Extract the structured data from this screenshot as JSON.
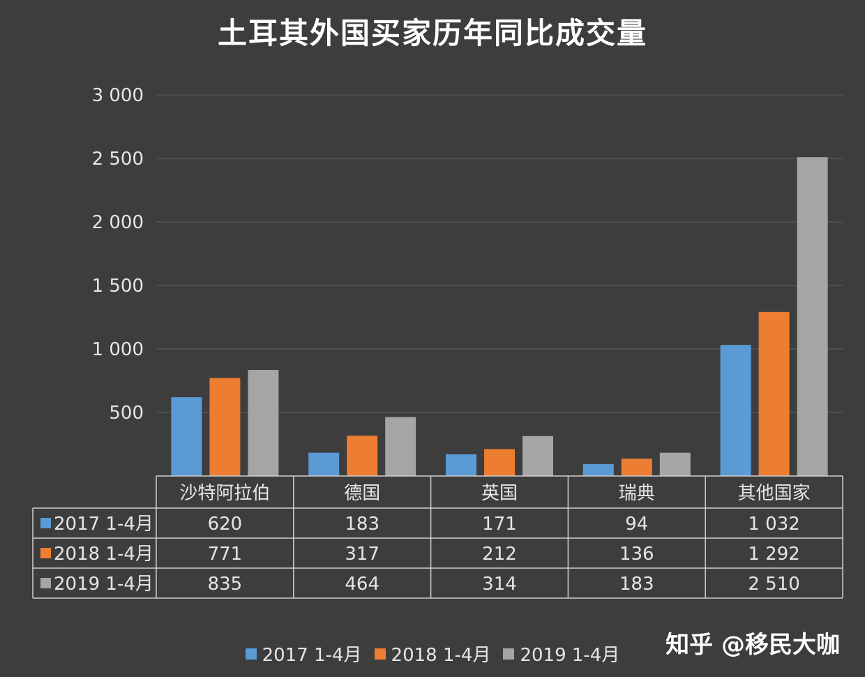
{
  "chart_data": {
    "type": "bar",
    "title": "土耳其外国买家历年同比成交量",
    "categories": [
      "沙特阿拉伯",
      "德国",
      "英国",
      "瑞典",
      "其他国家"
    ],
    "series": [
      {
        "name": "2017 1-4月",
        "color": "#5b9bd5",
        "values": [
          620,
          183,
          171,
          94,
          1032
        ],
        "labels": [
          "620",
          "183",
          "171",
          "94",
          "1 032"
        ]
      },
      {
        "name": "2018 1-4月",
        "color": "#ed7d31",
        "values": [
          771,
          317,
          212,
          136,
          1292
        ],
        "labels": [
          "771",
          "317",
          "212",
          "136",
          "1 292"
        ]
      },
      {
        "name": "2019 1-4月",
        "color": "#a5a5a5",
        "values": [
          835,
          464,
          314,
          183,
          2510
        ],
        "labels": [
          "835",
          "464",
          "314",
          "183",
          "2 510"
        ]
      }
    ],
    "ylim": [
      0,
      3000
    ],
    "yticks": [
      500,
      1000,
      1500,
      2000,
      2500,
      3000
    ],
    "ytick_labels": [
      "500",
      "1 000",
      "1 500",
      "2 000",
      "2 500",
      "3 000"
    ],
    "grid": true,
    "legend": "bottom",
    "data_table": true
  },
  "watermark": "知乎 @移民大咖"
}
